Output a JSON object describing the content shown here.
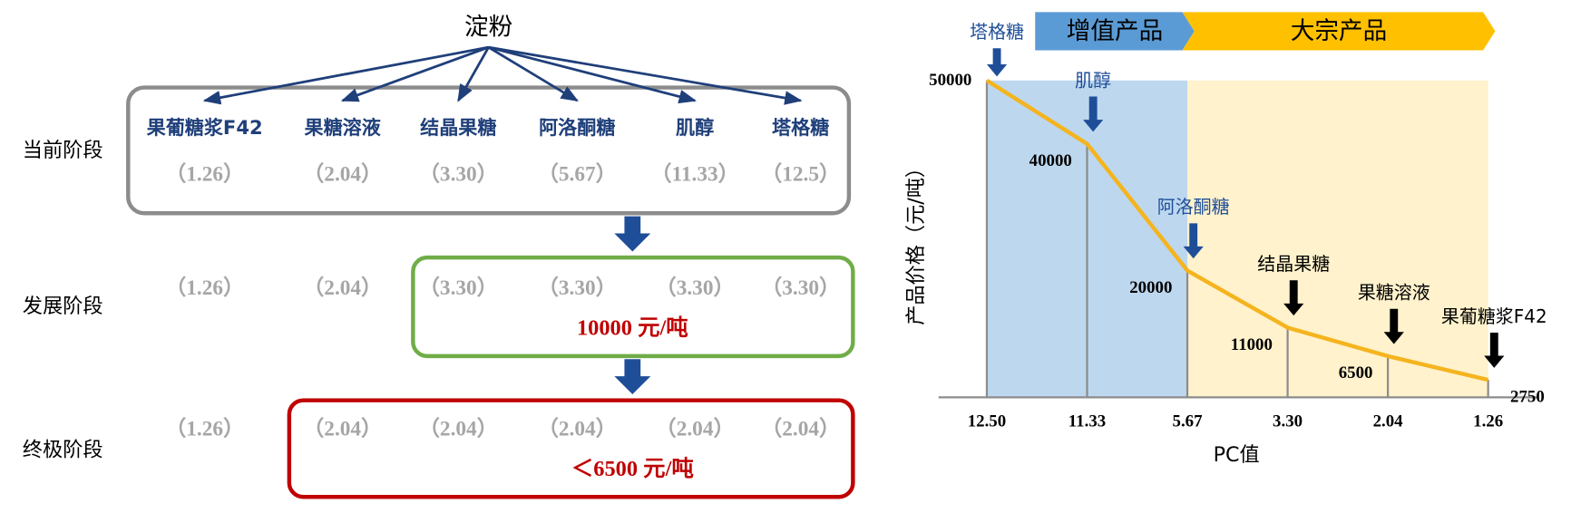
{
  "diagram": {
    "root": "淀粉",
    "products": [
      "果葡糖浆F42",
      "果糖溶液",
      "结晶果糖",
      "阿洛酮糖",
      "肌醇",
      "塔格糖"
    ],
    "stages": [
      {
        "label": "当前阶段",
        "values": [
          "（1.26）",
          "（2.04）",
          "（3.30）",
          "（5.67）",
          "（11.33）",
          "（12.5）"
        ]
      },
      {
        "label": "发展阶段",
        "values": [
          "（1.26）",
          "（2.04）",
          "（3.30）",
          "（3.30）",
          "（3.30）",
          "（3.30）"
        ],
        "price": "10000 元/吨"
      },
      {
        "label": "终极阶段",
        "values": [
          "（1.26）",
          "（2.04）",
          "（2.04）",
          "（2.04）",
          "（2.04）",
          "（2.04）"
        ],
        "price": "＜6500 元/吨"
      }
    ]
  },
  "chart_data": {
    "type": "line",
    "x_label": "PC值",
    "y_label": "产品价格（元/吨）",
    "categories": [
      "12.50",
      "11.33",
      "5.67",
      "3.30",
      "2.04",
      "1.26"
    ],
    "values": [
      50000,
      40000,
      20000,
      11000,
      6500,
      2750
    ],
    "color": "#f5b41e",
    "ylim": [
      0,
      50000
    ],
    "annotations": [
      "塔格糖",
      "肌醇",
      "阿洛酮糖",
      "结晶果糖",
      "果糖溶液",
      "果葡糖浆F42"
    ],
    "annotation_colors": [
      "#1f4e99",
      "#1f4e99",
      "#1f4e99",
      "#000000",
      "#000000",
      "#000000"
    ],
    "regions": [
      {
        "label": "增值产品",
        "start": "12.50",
        "end": "5.67",
        "color": "#5b9bd5",
        "shade": "#bdd7ee"
      },
      {
        "label": "大宗产品",
        "start": "5.67",
        "end": "1.26",
        "color": "#ffc000",
        "shade": "#fff2cc"
      }
    ]
  }
}
